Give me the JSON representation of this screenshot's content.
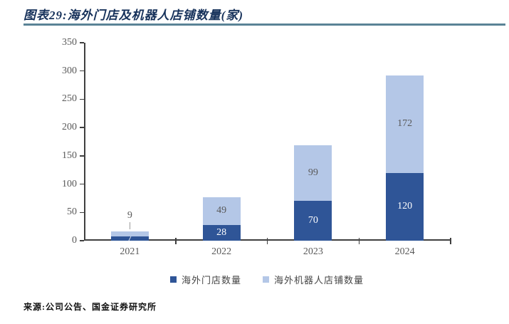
{
  "header": {
    "title": "图表29:海外门店及机器人店铺数量(家)",
    "title_color": "#17325B",
    "rule_color": "#5A8396"
  },
  "chart_data": {
    "type": "bar",
    "stacked": true,
    "title": "海外门店及机器人店铺数量(家)",
    "categories": [
      "2021",
      "2022",
      "2023",
      "2024"
    ],
    "series": [
      {
        "name": "海外门店数量",
        "values": [
          7,
          28,
          70,
          120
        ],
        "color": "#2F5597",
        "label_color": "#FFFFFF"
      },
      {
        "name": "海外机器人店铺数量",
        "values": [
          9,
          49,
          99,
          172
        ],
        "color": "#B4C7E7",
        "label_color": "#595959"
      }
    ],
    "xlabel": "",
    "ylabel": "",
    "ylim": [
      0,
      350
    ],
    "ytick_step": 50,
    "yticks": [
      0,
      50,
      100,
      150,
      200,
      250,
      300,
      350
    ],
    "grid": false,
    "legend_position": "bottom",
    "axis_color": "#3F3F3F",
    "tick_label_color": "#595959"
  },
  "footer": {
    "source": "来源:公司公告、国金证券研究所"
  }
}
